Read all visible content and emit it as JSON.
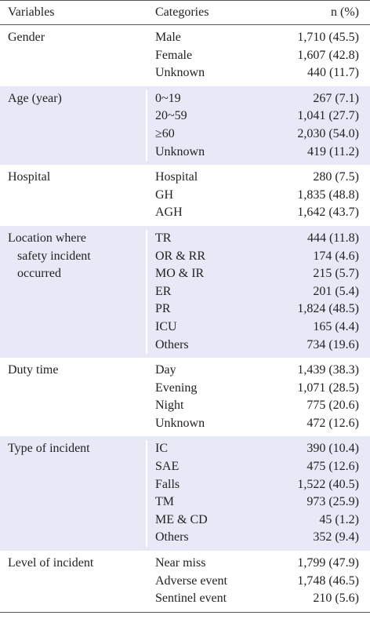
{
  "header": {
    "variables": "Variables",
    "categories": "Categories",
    "n": "n (%)"
  },
  "groups": [
    {
      "variable": [
        "Gender"
      ],
      "rows": [
        {
          "category": "Male",
          "n": "1,710 (45.5)"
        },
        {
          "category": "Female",
          "n": "1,607 (42.8)"
        },
        {
          "category": "Unknown",
          "n": "440 (11.7)"
        }
      ]
    },
    {
      "variable": [
        "Age (year)"
      ],
      "rows": [
        {
          "category": "0~19",
          "n": "267 (7.1)"
        },
        {
          "category": "20~59",
          "n": "1,041 (27.7)"
        },
        {
          "category": "≥60",
          "n": "2,030 (54.0)"
        },
        {
          "category": "Unknown",
          "n": "419 (11.2)"
        }
      ]
    },
    {
      "variable": [
        "Hospital"
      ],
      "rows": [
        {
          "category": "Hospital",
          "n": "280 (7.5)"
        },
        {
          "category": "GH",
          "n": "1,835 (48.8)"
        },
        {
          "category": "AGH",
          "n": "1,642 (43.7)"
        }
      ]
    },
    {
      "variable": [
        "Location where",
        "safety incident",
        "occurred"
      ],
      "rows": [
        {
          "category": "TR",
          "n": "444 (11.8)"
        },
        {
          "category": "OR & RR",
          "n": "174 (4.6)"
        },
        {
          "category": "MO & IR",
          "n": "215 (5.7)"
        },
        {
          "category": "ER",
          "n": "201 (5.4)"
        },
        {
          "category": "PR",
          "n": "1,824 (48.5)"
        },
        {
          "category": "ICU",
          "n": "165 (4.4)"
        },
        {
          "category": "Others",
          "n": "734 (19.6)"
        }
      ]
    },
    {
      "variable": [
        "Duty time"
      ],
      "rows": [
        {
          "category": "Day",
          "n": "1,439 (38.3)"
        },
        {
          "category": "Evening",
          "n": "1,071 (28.5)"
        },
        {
          "category": "Night",
          "n": "775 (20.6)"
        },
        {
          "category": "Unknown",
          "n": "472 (12.6)"
        }
      ]
    },
    {
      "variable": [
        "Type of incident"
      ],
      "rows": [
        {
          "category": "IC",
          "n": "390 (10.4)"
        },
        {
          "category": "SAE",
          "n": "475 (12.6)"
        },
        {
          "category": "Falls",
          "n": "1,522 (40.5)"
        },
        {
          "category": "TM",
          "n": "973 (25.9)"
        },
        {
          "category": "ME & CD",
          "n": "45 (1.2)"
        },
        {
          "category": "Others",
          "n": "352 (9.4)"
        }
      ]
    },
    {
      "variable": [
        "Level of incident"
      ],
      "rows": [
        {
          "category": "Near miss",
          "n": "1,799 (47.9)"
        },
        {
          "category": "Adverse event",
          "n": "1,748 (46.5)"
        },
        {
          "category": "Sentinel event",
          "n": "210 (5.6)"
        }
      ]
    }
  ]
}
